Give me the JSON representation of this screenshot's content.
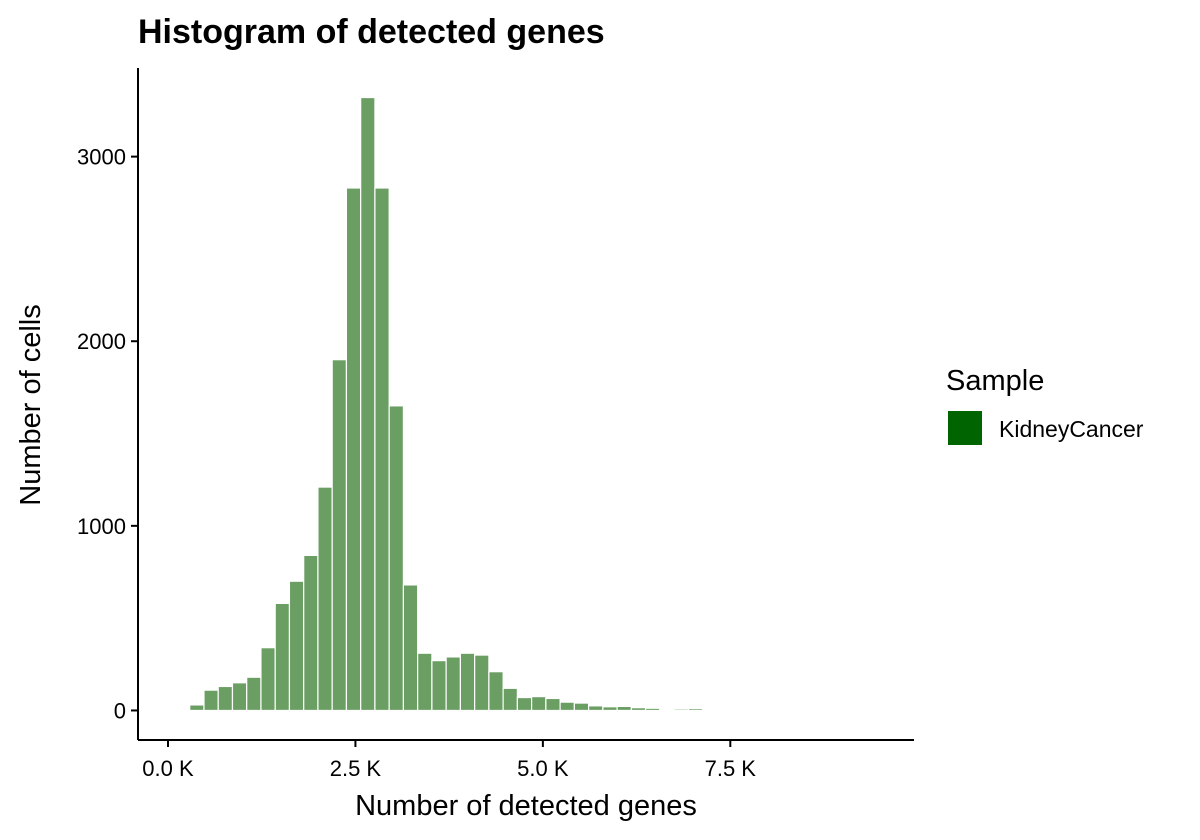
{
  "chart_data": {
    "type": "bar",
    "title": "Histogram of detected genes",
    "xlabel": "Number of detected genes",
    "ylabel": "Number of cells",
    "xlim": [
      -400,
      9950
    ],
    "ylim": [
      -160,
      3480
    ],
    "x_ticks": [
      {
        "value": 0,
        "label": "0.0 K"
      },
      {
        "value": 2500,
        "label": "2.5 K"
      },
      {
        "value": 5000,
        "label": "5.0 K"
      },
      {
        "value": 7500,
        "label": "7.5 K"
      }
    ],
    "y_ticks": [
      {
        "value": 0,
        "label": "0"
      },
      {
        "value": 1000,
        "label": "1000"
      },
      {
        "value": 2000,
        "label": "2000"
      },
      {
        "value": 3000,
        "label": "3000"
      }
    ],
    "bin_width": 190,
    "bin_start": 290,
    "values": [
      30,
      110,
      130,
      150,
      180,
      340,
      580,
      700,
      840,
      1210,
      1900,
      2830,
      3320,
      2830,
      1650,
      680,
      310,
      270,
      290,
      310,
      300,
      210,
      120,
      70,
      75,
      65,
      45,
      40,
      25,
      20,
      22,
      15,
      12,
      5,
      8,
      10,
      6,
      4,
      5,
      3,
      3,
      2,
      2,
      3,
      2,
      2,
      2,
      2
    ],
    "bar_fill": "#6a9e63",
    "bar_stroke": "#ffffff",
    "grid": false,
    "legend": {
      "title": "Sample",
      "position": "right",
      "items": [
        {
          "label": "KidneyCancer",
          "color": "#006400"
        }
      ]
    }
  }
}
